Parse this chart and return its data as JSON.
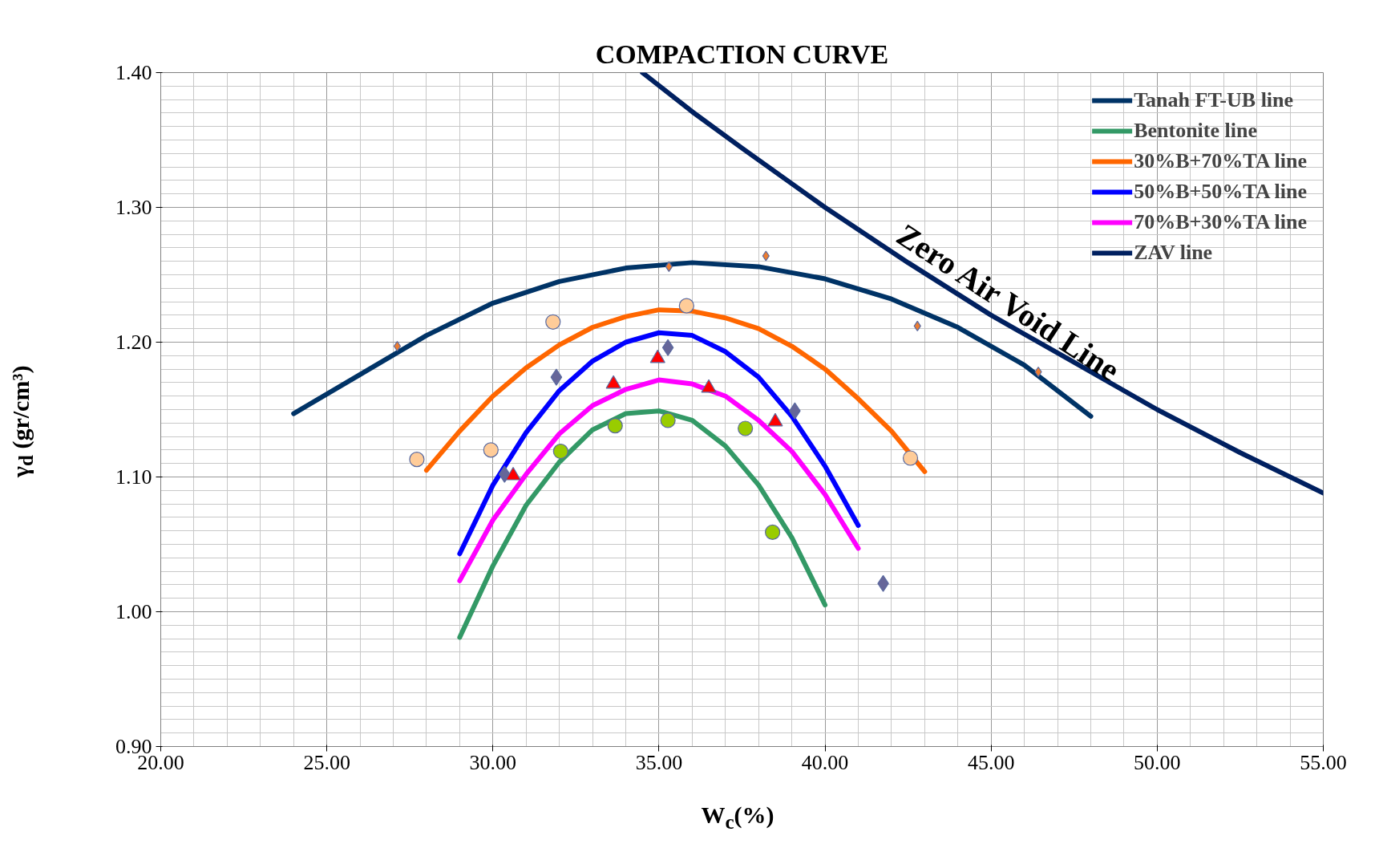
{
  "chart_data": {
    "type": "line",
    "title": "COMPACTION CURVE",
    "xlabel": "W$_{c}$(%)",
    "ylabel": "γ$_{d}$ (gr/cm³)",
    "xlim": [
      20,
      55
    ],
    "ylim": [
      0.9,
      1.4
    ],
    "xticks": [
      {
        "value": 20,
        "label": "20.00"
      },
      {
        "value": 25,
        "label": "25.00"
      },
      {
        "value": 30,
        "label": "30.00"
      },
      {
        "value": 35,
        "label": "35.00"
      },
      {
        "value": 40,
        "label": "40.00"
      },
      {
        "value": 45,
        "label": "45.00"
      },
      {
        "value": 50,
        "label": "50.00"
      },
      {
        "value": 55,
        "label": "55.00"
      }
    ],
    "yticks": [
      {
        "value": 0.9,
        "label": "0.90"
      },
      {
        "value": 1.0,
        "label": "1.00"
      },
      {
        "value": 1.1,
        "label": "1.10"
      },
      {
        "value": 1.2,
        "label": "1.20"
      },
      {
        "value": 1.3,
        "label": "1.30"
      },
      {
        "value": 1.4,
        "label": "1.40"
      }
    ],
    "grid": true,
    "legend": "top right",
    "line_style": "solid",
    "annotations": [
      "Zero Air Void Line"
    ],
    "series": [
      {
        "name": "Tanah FT-UB line",
        "marker": "none",
        "color": "#003366",
        "x": [
          24,
          26,
          28,
          30,
          32,
          34,
          36,
          38,
          40,
          42,
          44,
          46,
          48
        ],
        "values": [
          1.147,
          1.176,
          1.205,
          1.229,
          1.245,
          1.255,
          1.259,
          1.256,
          1.247,
          1.232,
          1.211,
          1.183,
          1.145
        ]
      },
      {
        "name": "Bentonite line",
        "marker": "none",
        "color": "#339966",
        "x": [
          29,
          30,
          31,
          32,
          33,
          34,
          35,
          36,
          37,
          38,
          39,
          40
        ],
        "values": [
          0.981,
          1.034,
          1.079,
          1.111,
          1.135,
          1.147,
          1.149,
          1.142,
          1.123,
          1.094,
          1.055,
          1.005
        ]
      },
      {
        "name": "30%B+70%TA line",
        "marker": "none",
        "color": "#ff6600",
        "x": [
          28,
          29,
          30,
          31,
          32,
          33,
          34,
          35,
          36,
          37,
          38,
          39,
          40,
          41,
          42,
          43
        ],
        "values": [
          1.105,
          1.134,
          1.16,
          1.181,
          1.198,
          1.211,
          1.219,
          1.224,
          1.223,
          1.218,
          1.21,
          1.197,
          1.18,
          1.158,
          1.134,
          1.104
        ]
      },
      {
        "name": "50%B+50%TA line",
        "marker": "none",
        "color": "#0000ff",
        "x": [
          29,
          30,
          31,
          32,
          33,
          34,
          35,
          36,
          37,
          38,
          39,
          40,
          41
        ],
        "values": [
          1.043,
          1.094,
          1.133,
          1.164,
          1.186,
          1.2,
          1.207,
          1.205,
          1.193,
          1.174,
          1.145,
          1.108,
          1.064
        ]
      },
      {
        "name": "70%B+30%TA line",
        "marker": "none",
        "color": "#ff00ff",
        "x": [
          29,
          30,
          31,
          32,
          33,
          34,
          35,
          36,
          37,
          38,
          39,
          40,
          41
        ],
        "values": [
          1.023,
          1.068,
          1.102,
          1.132,
          1.153,
          1.165,
          1.172,
          1.169,
          1.16,
          1.142,
          1.119,
          1.087,
          1.047
        ]
      },
      {
        "name": "ZAV line",
        "marker": "none",
        "color": "#002060",
        "x": [
          34.5,
          36,
          37.5,
          40,
          42.5,
          45,
          47.5,
          50,
          52.5,
          55
        ],
        "values": [
          1.4,
          1.371,
          1.344,
          1.3,
          1.259,
          1.22,
          1.185,
          1.15,
          1.118,
          1.088
        ]
      },
      {
        "type": "scatter",
        "marker": "diamond",
        "color": "#ed7d31",
        "x": [
          27.12,
          35.3,
          38.22,
          42.78,
          46.42
        ],
        "values": [
          1.197,
          1.256,
          1.264,
          1.212,
          1.178
        ]
      },
      {
        "type": "scatter",
        "marker": "circle",
        "color": "#99cc00",
        "x": [
          32.04,
          33.68,
          35.27,
          37.6,
          38.42
        ],
        "values": [
          1.119,
          1.138,
          1.142,
          1.136,
          1.059
        ]
      },
      {
        "type": "scatter",
        "marker": "circle",
        "color": "#ffcc99",
        "x": [
          27.71,
          29.94,
          31.81,
          35.83,
          42.57
        ],
        "values": [
          1.113,
          1.12,
          1.215,
          1.227,
          1.114
        ]
      },
      {
        "type": "scatter",
        "marker": "diamond",
        "color": "#666699",
        "x": [
          30.35,
          31.91,
          35.27,
          39.09,
          41.75
        ],
        "values": [
          1.102,
          1.174,
          1.196,
          1.149,
          1.021
        ]
      },
      {
        "type": "scatter",
        "marker": "triangle",
        "color": "#ff0000",
        "x": [
          30.61,
          33.63,
          34.96,
          36.5,
          38.5
        ],
        "values": [
          1.101,
          1.169,
          1.188,
          1.166,
          1.141
        ]
      }
    ]
  }
}
